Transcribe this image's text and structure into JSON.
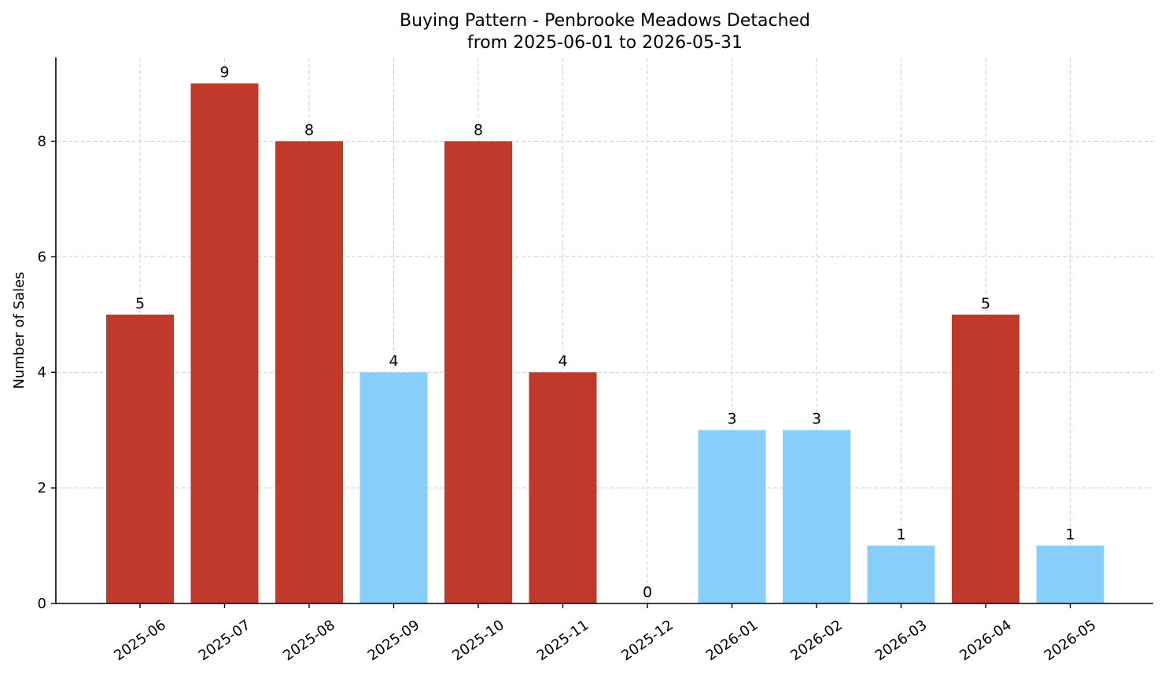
{
  "chart_data": {
    "type": "bar",
    "title": "Buying Pattern - Penbrooke Meadows Detached",
    "subtitle": "from 2025-06-01 to 2026-05-31",
    "xlabel": "",
    "ylabel": "Number of Sales",
    "categories": [
      "2025-06",
      "2025-07",
      "2025-08",
      "2025-09",
      "2025-10",
      "2025-11",
      "2025-12",
      "2026-01",
      "2026-02",
      "2026-03",
      "2026-04",
      "2026-05"
    ],
    "values": [
      5,
      9,
      8,
      4,
      8,
      4,
      0,
      3,
      3,
      1,
      5,
      1
    ],
    "bar_colors": [
      "#c0392b",
      "#c0392b",
      "#c0392b",
      "#87cefa",
      "#c0392b",
      "#c0392b",
      "#87cefa",
      "#87cefa",
      "#87cefa",
      "#87cefa",
      "#c0392b",
      "#87cefa"
    ],
    "ylim": [
      0,
      9.45
    ],
    "yticks": [
      0,
      2,
      4,
      6,
      8
    ],
    "grid": true,
    "legend": false
  }
}
